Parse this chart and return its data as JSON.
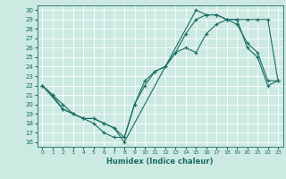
{
  "xlabel": "Humidex (Indice chaleur)",
  "xlim": [
    -0.5,
    23.5
  ],
  "ylim": [
    15.5,
    30.5
  ],
  "xticks": [
    0,
    1,
    2,
    3,
    4,
    5,
    6,
    7,
    8,
    9,
    10,
    11,
    12,
    13,
    14,
    15,
    16,
    17,
    18,
    19,
    20,
    21,
    22,
    23
  ],
  "yticks": [
    16,
    17,
    18,
    19,
    20,
    21,
    22,
    23,
    24,
    25,
    26,
    27,
    28,
    29,
    30
  ],
  "bg_color": "#cce9e2",
  "line_color": "#1a6e64",
  "grid_color": "#ffffff",
  "line1_x": [
    0,
    1,
    2,
    3,
    4,
    5,
    6,
    7,
    8,
    9,
    10,
    11,
    12,
    13,
    14,
    15,
    16,
    17,
    18,
    19,
    20,
    21,
    22,
    23
  ],
  "line1_y": [
    22,
    21,
    20,
    19,
    18.5,
    18,
    17,
    16.5,
    16.5,
    20,
    22,
    23.5,
    24,
    25.5,
    26,
    25.5,
    27.5,
    28.5,
    29,
    28.5,
    26.5,
    25.5,
    22.5,
    22.5
  ],
  "line2_x": [
    0,
    1,
    2,
    3,
    4,
    5,
    6,
    7,
    8,
    15,
    16,
    17,
    18,
    19,
    20,
    21,
    22,
    23
  ],
  "line2_y": [
    22,
    21,
    19.5,
    19,
    18.5,
    18.5,
    18,
    17.5,
    16,
    30,
    29.5,
    29.5,
    29,
    29,
    29,
    29,
    29,
    22.5
  ],
  "line3_x": [
    0,
    2,
    3,
    4,
    5,
    6,
    7,
    8,
    9,
    10,
    11,
    12,
    13,
    14,
    15,
    16,
    17,
    18,
    19,
    20,
    21,
    22,
    23
  ],
  "line3_y": [
    22,
    19.5,
    19,
    18.5,
    18.5,
    18,
    17.5,
    16.5,
    20,
    22.5,
    23.5,
    24,
    25.5,
    27.5,
    29,
    29.5,
    29.5,
    29,
    29,
    26,
    25,
    22,
    22.5
  ]
}
